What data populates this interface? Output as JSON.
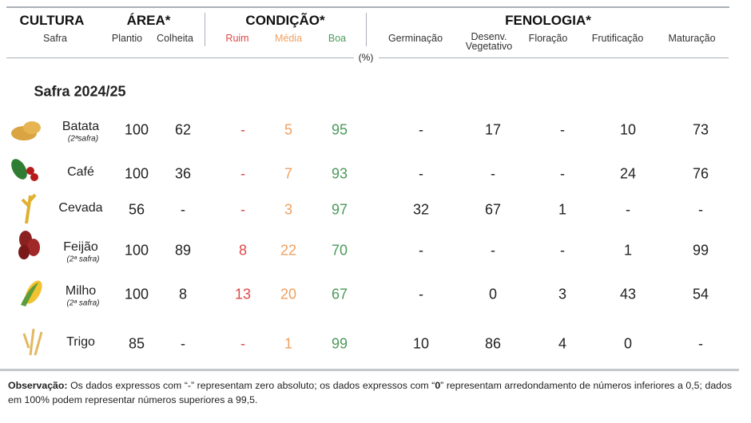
{
  "header": {
    "groups": [
      "CULTURA",
      "ÁREA*",
      "CONDIÇÃO*",
      "FENOLOGIA*"
    ],
    "columns": [
      "Safra",
      "Plantio",
      "Colheita",
      "Ruim",
      "Média",
      "Boa",
      "Germinação",
      "Desenv. Vegetativo",
      "Floração",
      "Frutificação",
      "Maturação"
    ],
    "unit": "(%)"
  },
  "section": "Safra 2024/25",
  "table": {
    "rows": [
      {
        "name": "Batata",
        "note": "(2ªsafra)",
        "cells": [
          "100",
          "62",
          "-",
          "5",
          "95",
          "-",
          "17",
          "-",
          "10",
          "73"
        ]
      },
      {
        "name": "Café",
        "cells": [
          "100",
          "36",
          "-",
          "7",
          "93",
          "-",
          "-",
          "-",
          "24",
          "76"
        ]
      },
      {
        "name": "Cevada",
        "cells": [
          "56",
          "-",
          "-",
          "3",
          "97",
          "32",
          "67",
          "1",
          "-",
          "-"
        ]
      },
      {
        "name": "Feijão",
        "note": "(2ª safra)",
        "cells": [
          "100",
          "89",
          "8",
          "22",
          "70",
          "-",
          "-",
          "-",
          "1",
          "99"
        ]
      },
      {
        "name": "Milho",
        "note": "(2ª safra)",
        "cells": [
          "100",
          "8",
          "13",
          "20",
          "67",
          "-",
          "0",
          "3",
          "43",
          "54"
        ]
      },
      {
        "name": "Trigo",
        "cells": [
          "85",
          "-",
          "-",
          "1",
          "99",
          "10",
          "86",
          "4",
          "0",
          "-"
        ]
      }
    ]
  },
  "footnote": {
    "label": "Observação:",
    "parts": [
      " Os dados expressos com “-” representam zero absoluto; os dados expressos com “",
      "0",
      "” representam arredondamento de números inferiores a 0,5; dados em 100% podem representar números superiores a 99,5."
    ]
  }
}
